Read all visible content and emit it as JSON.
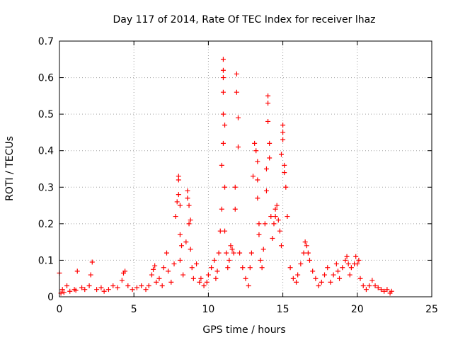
{
  "chart_data": {
    "type": "scatter",
    "title": "Day 117 of 2014, Rate Of TEC Index for receiver lhaz",
    "xlabel": "GPS time / hours",
    "ylabel": "ROTI / TECUs",
    "xlim": [
      0,
      25
    ],
    "ylim": [
      0,
      0.7
    ],
    "xticks": [
      0,
      5,
      10,
      15,
      20,
      25
    ],
    "xtick_labels": [
      "0",
      "5",
      "10",
      "15",
      "20",
      "25"
    ],
    "yticks": [
      0,
      0.1,
      0.2,
      0.3,
      0.4,
      0.5,
      0.6,
      0.7
    ],
    "ytick_labels": [
      "0",
      "0.1",
      "0.2",
      "0.3",
      "0.4",
      "0.5",
      "0.6",
      "0.7"
    ],
    "grid": true,
    "marker": "plus",
    "color": "#ff0000",
    "series": [
      {
        "x": [
          0.0,
          0.1,
          0.2,
          0.3,
          0.5,
          0.7,
          1.0,
          1.1,
          1.2,
          1.5,
          1.7,
          2.0,
          2.1,
          2.2,
          2.5,
          2.8,
          3.0,
          3.3,
          3.6,
          3.9,
          4.2,
          4.3,
          4.4,
          4.6,
          4.9,
          5.2,
          5.5,
          5.8,
          6.0,
          6.2,
          6.3,
          6.4,
          6.5,
          6.7,
          6.9,
          7.0,
          7.2,
          7.3,
          7.5,
          7.7,
          7.8,
          7.9,
          8.0,
          8.0,
          8.0,
          8.1,
          8.1,
          8.1,
          8.2,
          8.3,
          8.5,
          8.6,
          8.6,
          8.7,
          8.7,
          8.8,
          8.8,
          8.9,
          9.0,
          9.2,
          9.4,
          9.5,
          9.7,
          9.9,
          10.0,
          10.2,
          10.4,
          10.5,
          10.6,
          10.7,
          10.8,
          10.9,
          10.9,
          11.0,
          11.0,
          11.0,
          11.0,
          11.0,
          11.0,
          11.1,
          11.1,
          11.1,
          11.2,
          11.3,
          11.4,
          11.5,
          11.6,
          11.7,
          11.8,
          11.8,
          11.9,
          11.9,
          12.0,
          12.0,
          12.1,
          12.3,
          12.5,
          12.7,
          12.8,
          12.9,
          13.0,
          13.1,
          13.2,
          13.3,
          13.3,
          13.3,
          13.4,
          13.4,
          13.5,
          13.6,
          13.7,
          13.8,
          13.9,
          13.9,
          14.0,
          14.0,
          14.0,
          14.1,
          14.1,
          14.2,
          14.3,
          14.4,
          14.5,
          14.5,
          14.6,
          14.7,
          14.8,
          14.9,
          14.9,
          15.0,
          15.0,
          15.0,
          15.1,
          15.1,
          15.2,
          15.3,
          15.5,
          15.7,
          15.9,
          16.0,
          16.2,
          16.4,
          16.5,
          16.6,
          16.7,
          16.8,
          17.0,
          17.2,
          17.4,
          17.6,
          17.8,
          18.0,
          18.2,
          18.4,
          18.6,
          18.7,
          18.8,
          19.0,
          19.2,
          19.3,
          19.4,
          19.5,
          19.6,
          19.8,
          19.9,
          20.0,
          20.1,
          20.2,
          20.4,
          20.6,
          20.8,
          21.0,
          21.2,
          21.4,
          21.6,
          21.8,
          22.0,
          22.2,
          22.3
        ],
        "y": [
          0.065,
          0.01,
          0.02,
          0.012,
          0.03,
          0.015,
          0.02,
          0.018,
          0.07,
          0.025,
          0.02,
          0.03,
          0.06,
          0.095,
          0.02,
          0.025,
          0.015,
          0.02,
          0.03,
          0.025,
          0.045,
          0.065,
          0.07,
          0.03,
          0.02,
          0.025,
          0.03,
          0.02,
          0.03,
          0.06,
          0.075,
          0.085,
          0.04,
          0.05,
          0.03,
          0.08,
          0.12,
          0.07,
          0.04,
          0.09,
          0.22,
          0.26,
          0.33,
          0.32,
          0.28,
          0.25,
          0.17,
          0.1,
          0.14,
          0.06,
          0.15,
          0.29,
          0.27,
          0.25,
          0.2,
          0.21,
          0.13,
          0.08,
          0.05,
          0.09,
          0.04,
          0.05,
          0.03,
          0.04,
          0.06,
          0.08,
          0.1,
          0.05,
          0.07,
          0.12,
          0.18,
          0.24,
          0.36,
          0.65,
          0.62,
          0.6,
          0.56,
          0.5,
          0.42,
          0.47,
          0.3,
          0.18,
          0.12,
          0.08,
          0.1,
          0.14,
          0.13,
          0.12,
          0.3,
          0.24,
          0.61,
          0.56,
          0.49,
          0.41,
          0.12,
          0.08,
          0.05,
          0.03,
          0.08,
          0.12,
          0.33,
          0.42,
          0.4,
          0.37,
          0.32,
          0.27,
          0.2,
          0.17,
          0.1,
          0.08,
          0.13,
          0.2,
          0.29,
          0.35,
          0.55,
          0.53,
          0.48,
          0.42,
          0.38,
          0.22,
          0.16,
          0.2,
          0.22,
          0.24,
          0.25,
          0.21,
          0.18,
          0.14,
          0.39,
          0.47,
          0.45,
          0.43,
          0.36,
          0.34,
          0.3,
          0.22,
          0.08,
          0.05,
          0.04,
          0.06,
          0.09,
          0.12,
          0.15,
          0.14,
          0.12,
          0.1,
          0.07,
          0.05,
          0.03,
          0.04,
          0.06,
          0.08,
          0.04,
          0.06,
          0.09,
          0.07,
          0.05,
          0.08,
          0.1,
          0.11,
          0.09,
          0.06,
          0.08,
          0.09,
          0.11,
          0.09,
          0.1,
          0.05,
          0.03,
          0.02,
          0.03,
          0.045,
          0.03,
          0.025,
          0.02,
          0.015,
          0.02,
          0.01,
          0.015
        ]
      }
    ]
  }
}
